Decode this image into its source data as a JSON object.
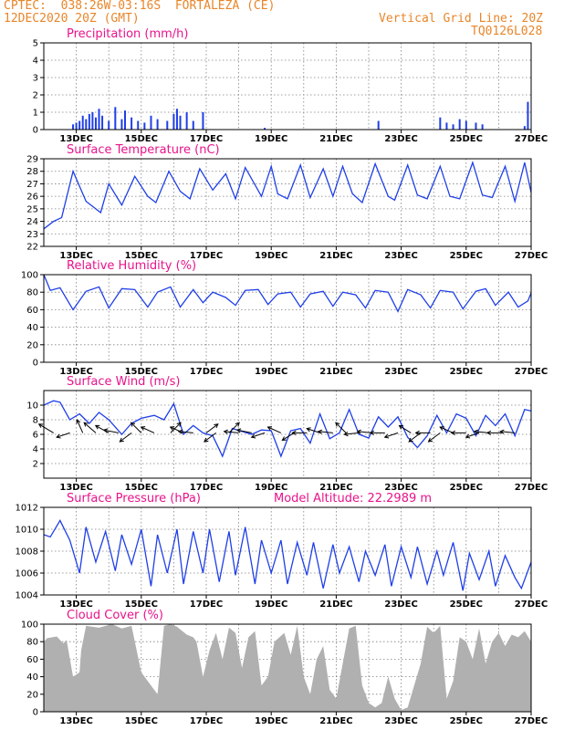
{
  "header": {
    "line1_left": "CPTEC:  038:26W-03:16S  FORTALEZA (CE)",
    "line2_left": "12DEC2020 20Z (GMT)",
    "line2_right": "Vertical Grid Line: 20Z",
    "line3_right": "TQ0126L028"
  },
  "x_ticks": [
    "13DEC",
    "15DEC",
    "17DEC",
    "19DEC",
    "21DEC",
    "23DEC",
    "25DEC",
    "27DEC"
  ],
  "chart_data": [
    {
      "id": "precip",
      "type": "bar",
      "title": "Precipitation (mm/h)",
      "color": "#1f3fe8",
      "ylim": [
        0,
        5
      ],
      "yticks": [
        0,
        1,
        2,
        3,
        4,
        5
      ],
      "series": [
        {
          "x": [
            12.9,
            13.0,
            13.1,
            13.2,
            13.3,
            13.4,
            13.5,
            13.6,
            13.7,
            13.8,
            14.0,
            14.2,
            14.4,
            14.5,
            14.7,
            14.9,
            15.1,
            15.3,
            15.5,
            15.8,
            16.0,
            16.1,
            16.2,
            16.4,
            16.6,
            16.9,
            18.8,
            22.3,
            24.2,
            24.4,
            24.6,
            24.8,
            25.0,
            25.3,
            25.5,
            26.8,
            26.9
          ],
          "values": [
            0.3,
            0.4,
            0.5,
            0.8,
            0.6,
            0.9,
            1.0,
            0.7,
            1.2,
            0.8,
            0.5,
            1.3,
            0.6,
            1.1,
            0.7,
            0.5,
            0.4,
            0.8,
            0.6,
            0.5,
            0.9,
            1.2,
            0.8,
            1.0,
            0.5,
            1.0,
            0.1,
            0.5,
            0.7,
            0.4,
            0.3,
            0.6,
            0.5,
            0.4,
            0.3,
            0.2,
            1.6
          ]
        }
      ]
    },
    {
      "id": "temp",
      "type": "line",
      "title": "Surface Temperature (nC)",
      "color": "#1f3fe8",
      "ylim": [
        22,
        29
      ],
      "yticks": [
        22,
        23,
        24,
        25,
        26,
        27,
        28,
        29
      ],
      "series": [
        {
          "x": [
            12.0,
            12.3,
            12.55,
            12.9,
            13.3,
            13.75,
            14.0,
            14.4,
            14.8,
            15.2,
            15.45,
            15.85,
            16.2,
            16.5,
            16.8,
            17.2,
            17.6,
            17.9,
            18.2,
            18.7,
            19.0,
            19.2,
            19.5,
            19.9,
            20.2,
            20.6,
            20.9,
            21.2,
            21.5,
            21.8,
            22.2,
            22.6,
            22.8,
            23.2,
            23.5,
            23.8,
            24.2,
            24.5,
            24.8,
            25.2,
            25.5,
            25.8,
            26.2,
            26.5,
            26.8,
            27.0
          ],
          "values": [
            23.4,
            24.0,
            24.3,
            28.0,
            25.6,
            24.7,
            27.0,
            25.3,
            27.6,
            26.0,
            25.5,
            28.0,
            26.4,
            25.8,
            28.2,
            26.5,
            27.8,
            25.8,
            28.3,
            26.0,
            28.4,
            26.2,
            25.8,
            28.5,
            25.9,
            28.2,
            26.0,
            28.4,
            26.2,
            25.5,
            28.6,
            26.0,
            25.7,
            28.5,
            26.1,
            25.8,
            28.4,
            26.0,
            25.8,
            28.7,
            26.1,
            25.9,
            28.4,
            25.6,
            28.7,
            26.3
          ]
        }
      ]
    },
    {
      "id": "rh",
      "type": "line",
      "title": "Relative Humidity (%)",
      "color": "#1f3fe8",
      "ylim": [
        0,
        100
      ],
      "yticks": [
        0,
        20,
        40,
        60,
        80,
        100
      ],
      "series": [
        {
          "x": [
            12.0,
            12.2,
            12.5,
            12.9,
            13.3,
            13.7,
            14.0,
            14.4,
            14.8,
            15.2,
            15.5,
            15.9,
            16.2,
            16.6,
            16.9,
            17.2,
            17.6,
            17.9,
            18.2,
            18.6,
            18.9,
            19.2,
            19.6,
            19.9,
            20.2,
            20.6,
            20.9,
            21.2,
            21.6,
            21.9,
            22.2,
            22.6,
            22.9,
            23.2,
            23.6,
            23.9,
            24.2,
            24.6,
            24.9,
            25.3,
            25.6,
            25.9,
            26.3,
            26.6,
            26.9,
            27.0
          ],
          "values": [
            100,
            82,
            85,
            60,
            81,
            86,
            62,
            84,
            83,
            63,
            80,
            86,
            63,
            83,
            68,
            80,
            74,
            65,
            82,
            83,
            66,
            78,
            80,
            63,
            78,
            81,
            64,
            80,
            77,
            62,
            82,
            80,
            58,
            83,
            77,
            62,
            82,
            80,
            61,
            81,
            84,
            65,
            80,
            63,
            70,
            79
          ]
        }
      ]
    },
    {
      "id": "wind",
      "type": "line",
      "title": "Surface Wind (m/s)",
      "color": "#1f3fe8",
      "ylim": [
        0,
        12
      ],
      "yticks": [
        2,
        4,
        6,
        8,
        10
      ],
      "series": [
        {
          "x": [
            12.0,
            12.3,
            12.5,
            12.8,
            13.1,
            13.4,
            13.7,
            14.0,
            14.4,
            14.7,
            15.0,
            15.4,
            15.7,
            16.0,
            16.3,
            16.6,
            16.9,
            17.2,
            17.5,
            17.8,
            18.1,
            18.4,
            18.7,
            19.0,
            19.3,
            19.6,
            19.9,
            20.2,
            20.5,
            20.8,
            21.1,
            21.4,
            21.7,
            22.0,
            22.3,
            22.6,
            22.9,
            23.2,
            23.5,
            23.8,
            24.1,
            24.4,
            24.7,
            25.0,
            25.3,
            25.6,
            25.9,
            26.2,
            26.5,
            26.8,
            27.0
          ],
          "values": [
            10.0,
            10.6,
            10.4,
            8.0,
            8.8,
            7.5,
            9.0,
            8.0,
            6.0,
            7.5,
            8.2,
            8.6,
            8.0,
            10.2,
            6.0,
            7.2,
            6.2,
            5.8,
            3.0,
            6.8,
            6.4,
            6.0,
            6.6,
            6.5,
            3.0,
            6.5,
            6.8,
            4.8,
            8.8,
            5.4,
            6.2,
            9.4,
            6.0,
            5.5,
            8.4,
            7.0,
            8.4,
            5.6,
            4.2,
            5.8,
            8.6,
            6.2,
            8.8,
            8.2,
            5.8,
            8.6,
            7.2,
            8.8,
            5.8,
            9.4,
            9.2
          ]
        }
      ]
    },
    {
      "id": "pres",
      "type": "line",
      "title": "Surface Pressure (hPa)",
      "color": "#1f3fe8",
      "ylim": [
        1004,
        1012
      ],
      "yticks": [
        1004,
        1006,
        1008,
        1010,
        1012
      ],
      "series": [
        {
          "x": [
            12.0,
            12.2,
            12.5,
            12.8,
            13.1,
            13.3,
            13.6,
            13.9,
            14.2,
            14.4,
            14.7,
            15.0,
            15.3,
            15.5,
            15.8,
            16.1,
            16.3,
            16.6,
            16.9,
            17.1,
            17.4,
            17.7,
            17.9,
            18.2,
            18.5,
            18.7,
            19.0,
            19.3,
            19.5,
            19.8,
            20.1,
            20.3,
            20.6,
            20.9,
            21.1,
            21.4,
            21.7,
            21.9,
            22.2,
            22.5,
            22.7,
            23.0,
            23.3,
            23.5,
            23.8,
            24.1,
            24.3,
            24.6,
            24.9,
            25.1,
            25.4,
            25.7,
            25.9,
            26.2,
            26.5,
            26.7,
            27.0
          ],
          "values": [
            1009.5,
            1009.3,
            1010.8,
            1009.0,
            1006.0,
            1010.2,
            1007.0,
            1009.8,
            1006.2,
            1009.5,
            1006.8,
            1010.0,
            1004.8,
            1009.5,
            1006.0,
            1010.0,
            1005.0,
            1009.8,
            1006.0,
            1010.0,
            1005.2,
            1009.8,
            1005.8,
            1010.2,
            1005.0,
            1009.0,
            1006.0,
            1009.0,
            1005.0,
            1008.8,
            1005.8,
            1008.8,
            1004.6,
            1008.6,
            1006.0,
            1008.4,
            1005.2,
            1008.0,
            1005.8,
            1008.6,
            1004.8,
            1008.4,
            1005.6,
            1008.4,
            1005.0,
            1008.0,
            1005.8,
            1008.8,
            1004.4,
            1007.8,
            1005.4,
            1008.0,
            1004.8,
            1007.6,
            1005.6,
            1004.6,
            1007.0
          ]
        }
      ]
    },
    {
      "id": "cloud",
      "type": "area",
      "title": "Cloud Cover (%)",
      "color": "#b0b0b0",
      "ylim": [
        0,
        100
      ],
      "yticks": [
        0,
        20,
        40,
        60,
        80,
        100
      ],
      "series": [
        {
          "x": [
            12.0,
            12.1,
            12.4,
            12.6,
            12.7,
            12.9,
            13.1,
            13.15,
            13.3,
            13.7,
            13.9,
            14.1,
            14.4,
            14.7,
            15.0,
            15.3,
            15.5,
            15.7,
            15.9,
            16.1,
            16.4,
            16.6,
            16.7,
            16.9,
            17.1,
            17.3,
            17.5,
            17.7,
            17.9,
            18.1,
            18.3,
            18.5,
            18.7,
            18.9,
            19.1,
            19.4,
            19.6,
            19.8,
            20.0,
            20.2,
            20.4,
            20.6,
            20.8,
            21.0,
            21.2,
            21.4,
            21.6,
            21.8,
            22.0,
            22.2,
            22.4,
            22.6,
            22.8,
            23.0,
            23.2,
            23.4,
            23.6,
            23.8,
            24.0,
            24.2,
            24.4,
            24.6,
            24.8,
            25.0,
            25.2,
            25.4,
            25.6,
            25.8,
            26.0,
            26.2,
            26.4,
            26.6,
            26.8,
            27.0
          ],
          "values": [
            80,
            84,
            86,
            78,
            82,
            40,
            45,
            70,
            98,
            96,
            98,
            100,
            95,
            98,
            45,
            30,
            20,
            98,
            100,
            97,
            88,
            85,
            80,
            40,
            70,
            90,
            60,
            96,
            90,
            50,
            85,
            92,
            30,
            40,
            80,
            90,
            65,
            98,
            40,
            20,
            60,
            75,
            25,
            15,
            55,
            95,
            98,
            30,
            10,
            5,
            10,
            40,
            15,
            2,
            5,
            30,
            55,
            97,
            90,
            98,
            15,
            35,
            85,
            80,
            60,
            95,
            55,
            80,
            90,
            75,
            88,
            85,
            92,
            80
          ]
        }
      ]
    }
  ],
  "annotations": {
    "pressure_note": "Model Altitude: 22.2989 m"
  },
  "wind_arrows": [
    {
      "x": 12.3,
      "u": -1.0,
      "v": 0.6
    },
    {
      "x": 12.8,
      "u": -0.9,
      "v": -0.3
    },
    {
      "x": 13.2,
      "u": -0.4,
      "v": 0.9
    },
    {
      "x": 13.6,
      "u": -0.8,
      "v": 0.7
    },
    {
      "x": 14.0,
      "u": -0.9,
      "v": 0.5
    },
    {
      "x": 14.3,
      "u": -1.0,
      "v": 0.2
    },
    {
      "x": 14.7,
      "u": -0.8,
      "v": -0.6
    },
    {
      "x": 15.0,
      "u": -0.7,
      "v": 0.7
    },
    {
      "x": 15.4,
      "u": -0.9,
      "v": 0.4
    },
    {
      "x": 15.9,
      "u": 0.7,
      "v": 0.7
    },
    {
      "x": 16.3,
      "u": -0.9,
      "v": 0.4
    },
    {
      "x": 16.6,
      "u": -1.0,
      "v": 0.1
    },
    {
      "x": 17.0,
      "u": 0.8,
      "v": 0.6
    },
    {
      "x": 17.3,
      "u": -0.8,
      "v": -0.6
    },
    {
      "x": 17.7,
      "u": 0.7,
      "v": 0.7
    },
    {
      "x": 18.0,
      "u": -1.0,
      "v": 0.1
    },
    {
      "x": 18.4,
      "u": -1.0,
      "v": 0.2
    },
    {
      "x": 18.8,
      "u": -0.9,
      "v": -0.3
    },
    {
      "x": 19.3,
      "u": -0.9,
      "v": 0.4
    },
    {
      "x": 19.7,
      "u": -0.8,
      "v": -0.5
    },
    {
      "x": 20.1,
      "u": -1.0,
      "v": 0.0
    },
    {
      "x": 20.5,
      "u": -0.9,
      "v": 0.3
    },
    {
      "x": 20.9,
      "u": -1.0,
      "v": 0.1
    },
    {
      "x": 21.3,
      "u": -0.7,
      "v": 0.7
    },
    {
      "x": 21.7,
      "u": -1.0,
      "v": -0.1
    },
    {
      "x": 22.1,
      "u": -1.0,
      "v": 0.1
    },
    {
      "x": 22.5,
      "u": -1.0,
      "v": 0.0
    },
    {
      "x": 22.9,
      "u": -0.9,
      "v": -0.3
    },
    {
      "x": 23.3,
      "u": -0.8,
      "v": 0.5
    },
    {
      "x": 23.6,
      "u": -0.8,
      "v": -0.6
    },
    {
      "x": 23.9,
      "u": -1.0,
      "v": 0.0
    },
    {
      "x": 24.2,
      "u": -0.8,
      "v": -0.6
    },
    {
      "x": 24.6,
      "u": -0.9,
      "v": 0.4
    },
    {
      "x": 25.0,
      "u": -1.0,
      "v": 0.0
    },
    {
      "x": 25.4,
      "u": -0.9,
      "v": -0.3
    },
    {
      "x": 25.7,
      "u": -1.0,
      "v": 0.1
    },
    {
      "x": 26.1,
      "u": -1.0,
      "v": 0.0
    },
    {
      "x": 26.5,
      "u": -1.0,
      "v": 0.1
    }
  ]
}
